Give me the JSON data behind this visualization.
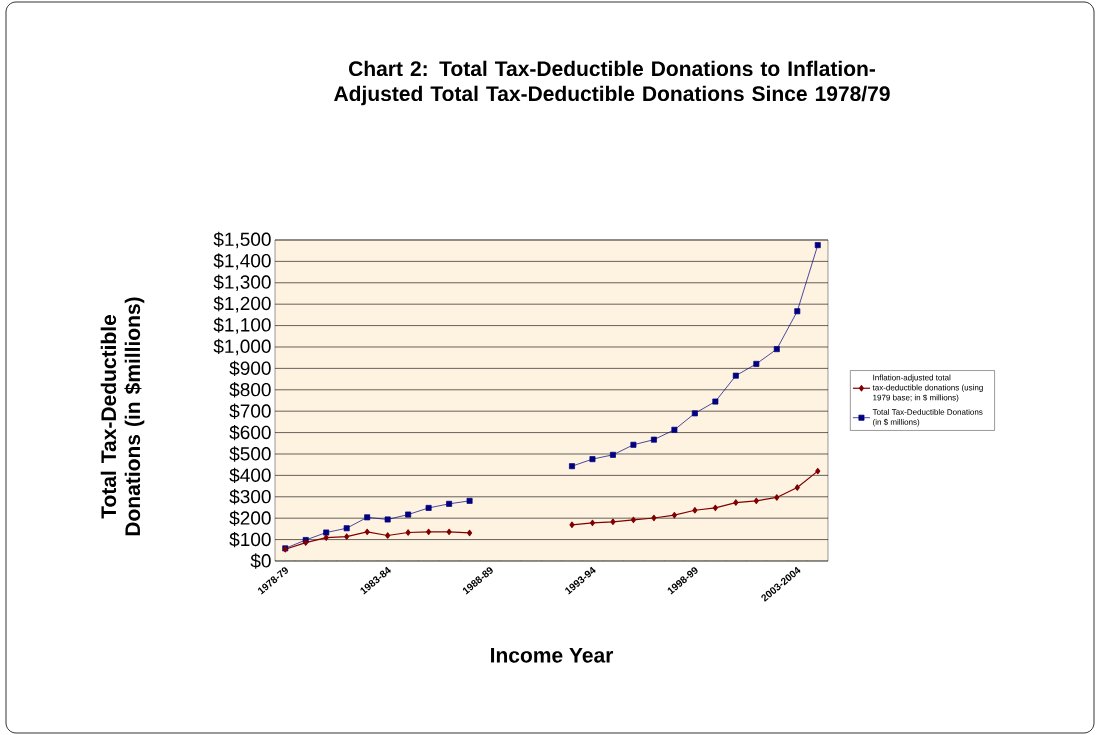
{
  "chart_data": {
    "type": "line",
    "title": "Chart 2: Total Tax-Deductible Donations to Inflation-Adjusted Total Tax-Deductible Donations Since 1978/79",
    "xlabel": "Income Year",
    "ylabel": "Total Tax-Deductible Donations (in $millions)",
    "categories": [
      "1978-79",
      null,
      null,
      null,
      null,
      "1983-84",
      null,
      null,
      null,
      null,
      "1988-89",
      null,
      null,
      null,
      null,
      "1993-94",
      null,
      null,
      null,
      null,
      "1998-99",
      null,
      null,
      null,
      null,
      "2003-2004",
      null
    ],
    "series": [
      {
        "name": "Inflation-adjusted total tax-deductible donations (using 1979 base; in $ millions)",
        "color": "#800000",
        "marker": "diamond",
        "values": [
          55,
          86,
          109,
          114,
          136,
          119,
          133,
          136,
          136,
          131,
          null,
          null,
          null,
          null,
          169,
          178,
          183,
          192,
          201,
          214,
          237,
          248,
          273,
          281,
          297,
          343,
          420
        ]
      },
      {
        "name": "Total Tax-Deductible Donations (in $ millions)",
        "color": "#000080",
        "marker": "square",
        "values": [
          59,
          98,
          133,
          153,
          204,
          194,
          217,
          248,
          267,
          281,
          null,
          null,
          null,
          null,
          443,
          476,
          496,
          543,
          567,
          613,
          690,
          745,
          866,
          921,
          990,
          1167,
          1476
        ]
      }
    ],
    "ylim": [
      0,
      1500
    ],
    "yticks": [
      {
        "value": 0,
        "label": "$0"
      },
      {
        "value": 100,
        "label": "$100"
      },
      {
        "value": 200,
        "label": "$200"
      },
      {
        "value": 300,
        "label": "$300"
      },
      {
        "value": 400,
        "label": "$400"
      },
      {
        "value": 500,
        "label": "$500"
      },
      {
        "value": 600,
        "label": "$600"
      },
      {
        "value": 700,
        "label": "$700"
      },
      {
        "value": 800,
        "label": "$800"
      },
      {
        "value": 900,
        "label": "$900"
      },
      {
        "value": 1000,
        "label": "$1,000"
      },
      {
        "value": 1100,
        "label": "$1,100"
      },
      {
        "value": 1200,
        "label": "$1,200"
      },
      {
        "value": 1300,
        "label": "$1,300"
      },
      {
        "value": 1400,
        "label": "$1,400"
      },
      {
        "value": 1500,
        "label": "$1,500"
      }
    ],
    "grid": "y",
    "legend": "right",
    "line_style": "solid"
  }
}
